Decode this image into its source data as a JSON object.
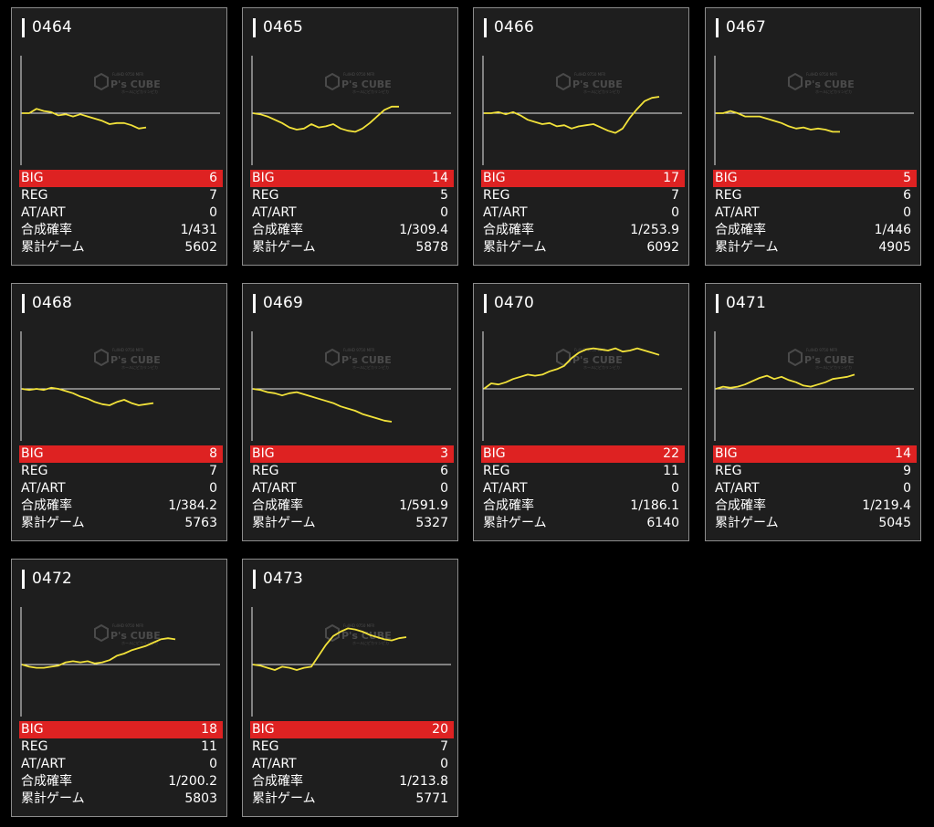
{
  "labels": {
    "big": "BIG",
    "reg": "REG",
    "at": "AT/ART",
    "rate": "合成確率",
    "games": "累計ゲーム"
  },
  "watermark": {
    "brand": "P's CUBE",
    "top_text": "FullHD 9750 MFR",
    "sub_text": "ホールにピカリンピカ"
  },
  "colors": {
    "background": "#000000",
    "card": "#1e1e1e",
    "big_bar": "#de2222",
    "line": "#f2e23a"
  },
  "machines": [
    {
      "id": "0464",
      "big": "6",
      "reg": "7",
      "at": "0",
      "rate": "1/431",
      "games": "5602",
      "series": [
        0,
        0,
        4,
        2,
        1,
        -2,
        -1,
        -3,
        -1,
        -3,
        -5,
        -7,
        -10,
        -9,
        -9,
        -11,
        -14,
        -13
      ]
    },
    {
      "id": "0465",
      "big": "14",
      "reg": "5",
      "at": "0",
      "rate": "1/309.4",
      "games": "5878",
      "series": [
        0,
        -1,
        -3,
        -6,
        -9,
        -13,
        -15,
        -14,
        -10,
        -13,
        -12,
        -10,
        -14,
        -16,
        -17,
        -14,
        -9,
        -3,
        3,
        6,
        6
      ]
    },
    {
      "id": "0466",
      "big": "17",
      "reg": "7",
      "at": "0",
      "rate": "1/253.9",
      "games": "6092",
      "series": [
        0,
        0,
        1,
        -1,
        1,
        -2,
        -6,
        -8,
        -10,
        -9,
        -12,
        -11,
        -14,
        -12,
        -11,
        -10,
        -13,
        -16,
        -18,
        -14,
        -4,
        4,
        11,
        14,
        15
      ]
    },
    {
      "id": "0467",
      "big": "5",
      "reg": "6",
      "at": "0",
      "rate": "1/446",
      "games": "4905",
      "series": [
        0,
        0,
        2,
        0,
        -3,
        -3,
        -3,
        -5,
        -7,
        -9,
        -12,
        -14,
        -13,
        -15,
        -14,
        -15,
        -17,
        -17
      ]
    },
    {
      "id": "0468",
      "big": "8",
      "reg": "7",
      "at": "0",
      "rate": "1/384.2",
      "games": "5763",
      "series": [
        0,
        -1,
        0,
        -1,
        1,
        0,
        -2,
        -4,
        -7,
        -9,
        -12,
        -14,
        -15,
        -12,
        -10,
        -13,
        -15,
        -14,
        -13
      ]
    },
    {
      "id": "0469",
      "big": "3",
      "reg": "6",
      "at": "0",
      "rate": "1/591.9",
      "games": "5327",
      "series": [
        0,
        -1,
        -3,
        -4,
        -6,
        -4,
        -3,
        -5,
        -7,
        -9,
        -11,
        -13,
        -16,
        -18,
        -20,
        -23,
        -25,
        -27,
        -29,
        -30
      ]
    },
    {
      "id": "0470",
      "big": "22",
      "reg": "11",
      "at": "0",
      "rate": "1/186.1",
      "games": "6140",
      "series": [
        0,
        5,
        4,
        6,
        9,
        11,
        13,
        12,
        13,
        16,
        18,
        21,
        28,
        33,
        36,
        37,
        36,
        35,
        37,
        34,
        35,
        37,
        35,
        33,
        31
      ]
    },
    {
      "id": "0471",
      "big": "14",
      "reg": "9",
      "at": "0",
      "rate": "1/219.4",
      "games": "5045",
      "series": [
        0,
        2,
        1,
        2,
        4,
        7,
        10,
        12,
        9,
        11,
        8,
        6,
        3,
        2,
        4,
        6,
        9,
        10,
        11,
        13
      ]
    },
    {
      "id": "0472",
      "big": "18",
      "reg": "11",
      "at": "0",
      "rate": "1/200.2",
      "games": "5803",
      "series": [
        0,
        -2,
        -3,
        -3,
        -2,
        -1,
        2,
        3,
        2,
        3,
        1,
        2,
        4,
        8,
        10,
        13,
        15,
        17,
        20,
        23,
        24,
        23
      ]
    },
    {
      "id": "0473",
      "big": "20",
      "reg": "7",
      "at": "0",
      "rate": "1/213.8",
      "games": "5771",
      "series": [
        0,
        -1,
        -3,
        -5,
        -2,
        -3,
        -5,
        -3,
        -2,
        8,
        18,
        26,
        30,
        33,
        32,
        30,
        27,
        25,
        23,
        22,
        24,
        25
      ]
    }
  ]
}
